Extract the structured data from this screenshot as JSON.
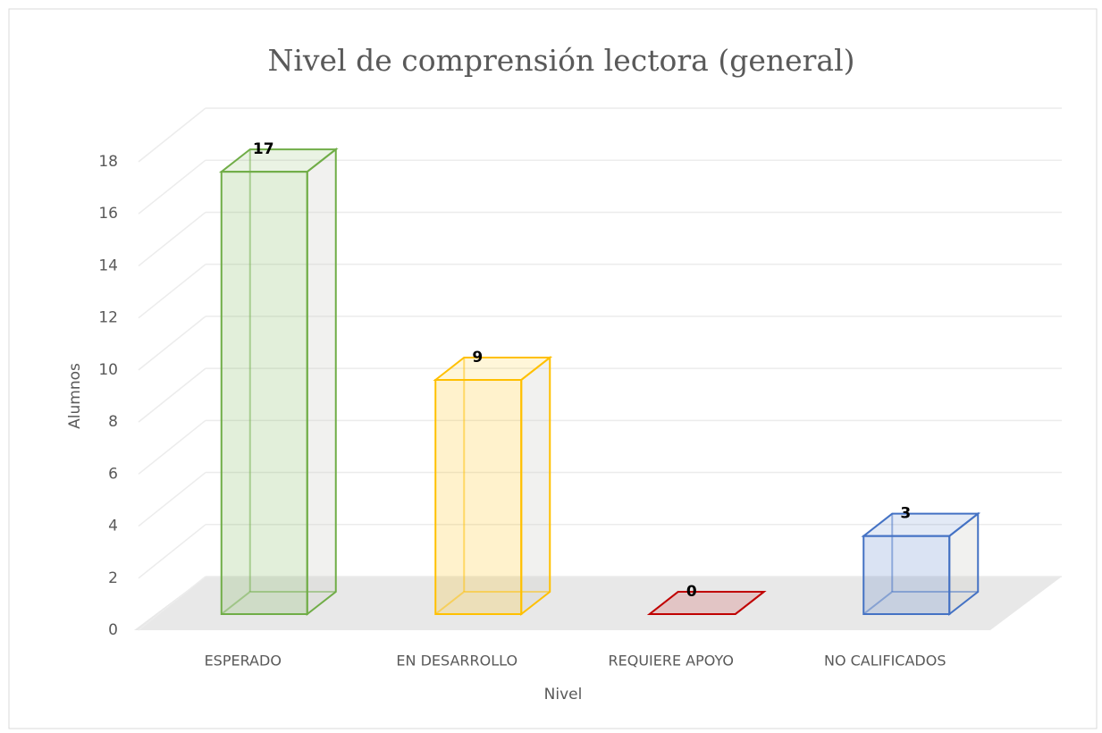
{
  "chart_data": {
    "type": "bar3d",
    "title": "Nivel de comprensión lectora (general)",
    "x_label": "Nivel",
    "y_label": "Alumnos",
    "categories": [
      "ESPERADO",
      "EN DESARROLLO",
      "REQUIERE APOYO",
      "NO CALIFICADOS"
    ],
    "values": [
      17,
      9,
      0,
      3
    ],
    "colors": [
      "#70ad47",
      "#ffc000",
      "#c00000",
      "#4472c4"
    ],
    "ylim": [
      0,
      18
    ],
    "yticks": [
      0,
      2,
      4,
      6,
      8,
      10,
      12,
      14,
      16,
      18
    ],
    "grid": true
  }
}
